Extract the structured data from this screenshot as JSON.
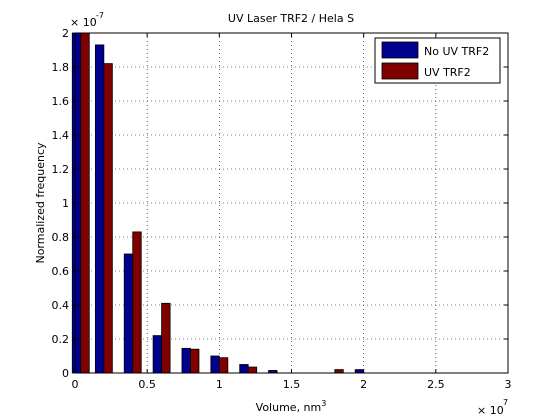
{
  "chart_data": {
    "type": "bar",
    "title": "UV Laser TRF2 / Hela S",
    "xlabel": "Volume, nm",
    "xlabel_superscript": "3",
    "ylabel": "Normalized frequency",
    "x_exponent": {
      "base": "× 10",
      "power": "7"
    },
    "y_exponent": {
      "base": "× 10",
      "power": "-7"
    },
    "xlim": [
      0,
      3
    ],
    "ylim": [
      0,
      2
    ],
    "x_ticks": [
      "0",
      "0.5",
      "1",
      "1.5",
      "2",
      "2.5",
      "3"
    ],
    "y_ticks": [
      "0",
      "0.2",
      "0.4",
      "0.6",
      "0.8",
      "1",
      "1.2",
      "1.4",
      "1.6",
      "1.8",
      "2"
    ],
    "grid": true,
    "legend_position": "top-right",
    "x": [
      0.04,
      0.2,
      0.4,
      0.6,
      0.8,
      1.0,
      1.2,
      1.4,
      1.6,
      1.8,
      2.0
    ],
    "series": [
      {
        "name": "No UV TRF2",
        "color": "#00008f",
        "values": [
          2.0,
          1.93,
          0.7,
          0.22,
          0.145,
          0.1,
          0.05,
          0.015,
          0.0,
          0.0,
          0.02
        ]
      },
      {
        "name": "UV TRF2",
        "color": "#800000",
        "values": [
          2.0,
          1.82,
          0.83,
          0.41,
          0.14,
          0.09,
          0.035,
          0.0,
          0.0,
          0.02,
          0.0
        ]
      }
    ]
  }
}
